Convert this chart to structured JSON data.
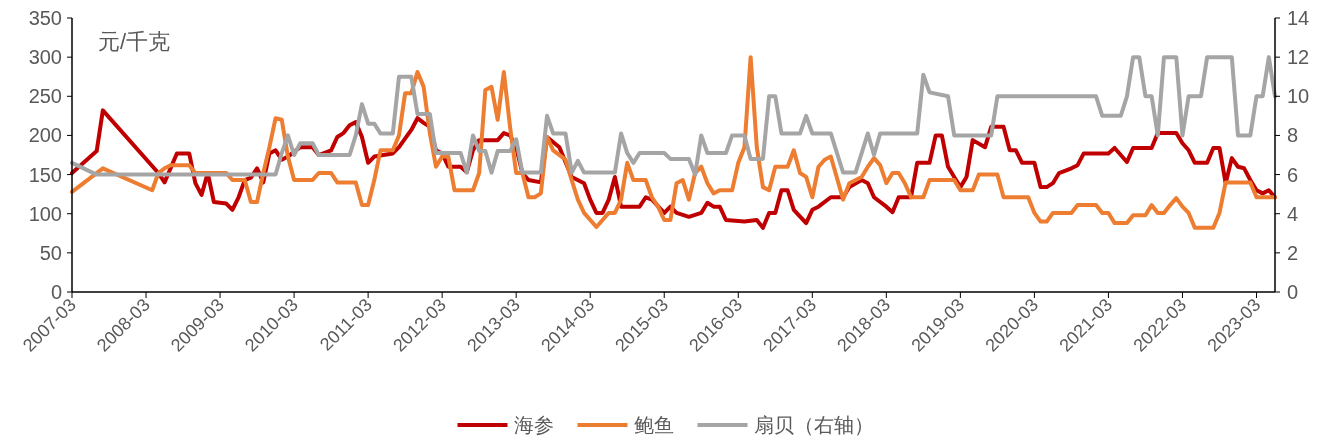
{
  "chart_data": {
    "type": "line",
    "ylabel": "元/千克",
    "xlim": [
      "2007-03",
      "2023-06"
    ],
    "xticks": [
      "2007-03",
      "2008-03",
      "2009-03",
      "2010-03",
      "2011-03",
      "2012-03",
      "2013-03",
      "2014-03",
      "2015-03",
      "2016-03",
      "2017-03",
      "2018-03",
      "2019-03",
      "2020-03",
      "2021-03",
      "2022-03",
      "2023-03"
    ],
    "ylim": [
      0,
      350
    ],
    "yticks": [
      0,
      50,
      100,
      150,
      200,
      250,
      300,
      350
    ],
    "y2lim": [
      0,
      14
    ],
    "y2ticks": [
      0,
      2,
      4,
      6,
      8,
      10,
      12,
      14
    ],
    "grid": false,
    "legend": "bottom",
    "line_style": "solid",
    "marker": "none",
    "series": [
      {
        "name": "海参",
        "color": "#c00000",
        "x": [
          "2007-03",
          "2007-07",
          "2007-08",
          "2008-05",
          "2008-06",
          "2008-08",
          "2008-10",
          "2008-11",
          "2008-12",
          "2009-01",
          "2009-02",
          "2009-04",
          "2009-05",
          "2009-06",
          "2009-07",
          "2009-08",
          "2009-09",
          "2009-10",
          "2009-11",
          "2009-12",
          "2010-01",
          "2010-02",
          "2010-04",
          "2010-06",
          "2010-07",
          "2010-09",
          "2010-10",
          "2010-11",
          "2010-12",
          "2011-01",
          "2011-02",
          "2011-03",
          "2011-04",
          "2011-07",
          "2011-08",
          "2011-10",
          "2011-11",
          "2011-12",
          "2012-01",
          "2012-02",
          "2012-03",
          "2012-04",
          "2012-06",
          "2012-07",
          "2012-08",
          "2012-09",
          "2012-12",
          "2013-01",
          "2013-02",
          "2013-03",
          "2013-04",
          "2013-05",
          "2013-07",
          "2013-08",
          "2013-10",
          "2013-12",
          "2014-02",
          "2014-03",
          "2014-04",
          "2014-05",
          "2014-06",
          "2014-07",
          "2014-08",
          "2014-11",
          "2014-12",
          "2015-01",
          "2015-03",
          "2015-04",
          "2015-05",
          "2015-07",
          "2015-09",
          "2015-10",
          "2015-11",
          "2015-12",
          "2016-01",
          "2016-04",
          "2016-06",
          "2016-07",
          "2016-08",
          "2016-09",
          "2016-10",
          "2016-11",
          "2016-12",
          "2017-02",
          "2017-03",
          "2017-04",
          "2017-06",
          "2017-08",
          "2017-09",
          "2017-11",
          "2017-12",
          "2018-01",
          "2018-03",
          "2018-04",
          "2018-05",
          "2018-07",
          "2018-08",
          "2018-10",
          "2018-11",
          "2018-12",
          "2019-01",
          "2019-02",
          "2019-03",
          "2019-04",
          "2019-05",
          "2019-07",
          "2019-08",
          "2019-10",
          "2019-11",
          "2019-12",
          "2020-01",
          "2020-03",
          "2020-04",
          "2020-05",
          "2020-06",
          "2020-07",
          "2020-09",
          "2020-10",
          "2020-11",
          "2021-03",
          "2021-04",
          "2021-06",
          "2021-07",
          "2021-10",
          "2021-11",
          "2022-02",
          "2022-03",
          "2022-04",
          "2022-05",
          "2022-07",
          "2022-08",
          "2022-09",
          "2022-10",
          "2022-11",
          "2022-12",
          "2023-01",
          "2023-02",
          "2023-03",
          "2023-04",
          "2023-05",
          "2023-06"
        ],
        "values": [
          152,
          180,
          232,
          152,
          140,
          177,
          177,
          139,
          124,
          152,
          115,
          113,
          105,
          121,
          143,
          146,
          158,
          140,
          177,
          181,
          169,
          173,
          185,
          185,
          175,
          181,
          198,
          203,
          213,
          217,
          198,
          165,
          173,
          177,
          185,
          207,
          222,
          216,
          211,
          181,
          177,
          160,
          160,
          153,
          181,
          194,
          194,
          203,
          200,
          185,
          152,
          143,
          140,
          198,
          185,
          147,
          139,
          118,
          101,
          101,
          118,
          147,
          109,
          109,
          121,
          118,
          101,
          109,
          101,
          96,
          101,
          114,
          109,
          109,
          92,
          90,
          92,
          82,
          101,
          101,
          130,
          130,
          105,
          88,
          105,
          109,
          121,
          121,
          134,
          143,
          139,
          121,
          109,
          102,
          121,
          121,
          165,
          165,
          200,
          200,
          160,
          147,
          134,
          147,
          194,
          185,
          211,
          211,
          181,
          181,
          165,
          165,
          134,
          134,
          139,
          152,
          158,
          162,
          177,
          177,
          184,
          166,
          184,
          184,
          203,
          203,
          190,
          181,
          165,
          165,
          184,
          184,
          139,
          171,
          160,
          158,
          143,
          130,
          126,
          130,
          121
        ]
      },
      {
        "name": "鲍鱼",
        "color": "#ed7d31",
        "x": [
          "2007-03",
          "2007-08",
          "2008-04",
          "2008-05",
          "2008-06",
          "2008-07",
          "2008-10",
          "2008-11",
          "2009-04",
          "2009-05",
          "2009-07",
          "2009-08",
          "2009-09",
          "2009-10",
          "2009-11",
          "2009-12",
          "2010-01",
          "2010-02",
          "2010-03",
          "2010-06",
          "2010-07",
          "2010-09",
          "2010-10",
          "2011-01",
          "2011-02",
          "2011-03",
          "2011-04",
          "2011-05",
          "2011-07",
          "2011-08",
          "2011-09",
          "2011-10",
          "2011-11",
          "2011-12",
          "2012-01",
          "2012-02",
          "2012-03",
          "2012-04",
          "2012-05",
          "2012-08",
          "2012-09",
          "2012-10",
          "2012-11",
          "2012-12",
          "2013-01",
          "2013-02",
          "2013-03",
          "2013-04",
          "2013-05",
          "2013-06",
          "2013-07",
          "2013-08",
          "2013-09",
          "2013-11",
          "2013-12",
          "2014-01",
          "2014-02",
          "2014-04",
          "2014-05",
          "2014-06",
          "2014-07",
          "2014-08",
          "2014-09",
          "2014-10",
          "2014-12",
          "2015-01",
          "2015-02",
          "2015-03",
          "2015-04",
          "2015-05",
          "2015-06",
          "2015-07",
          "2015-08",
          "2015-09",
          "2015-10",
          "2015-11",
          "2015-12",
          "2016-02",
          "2016-03",
          "2016-04",
          "2016-05",
          "2016-06",
          "2016-07",
          "2016-08",
          "2016-09",
          "2016-11",
          "2016-12",
          "2017-01",
          "2017-02",
          "2017-03",
          "2017-04",
          "2017-05",
          "2017-06",
          "2017-08",
          "2017-09",
          "2017-11",
          "2017-12",
          "2018-01",
          "2018-02",
          "2018-03",
          "2018-04",
          "2018-05",
          "2018-06",
          "2018-07",
          "2018-09",
          "2018-10",
          "2019-02",
          "2019-03",
          "2019-05",
          "2019-06",
          "2019-09",
          "2019-10",
          "2020-02",
          "2020-03",
          "2020-04",
          "2020-05",
          "2020-06",
          "2020-09",
          "2020-10",
          "2021-01",
          "2021-02",
          "2021-03",
          "2021-04",
          "2021-06",
          "2021-07",
          "2021-09",
          "2021-10",
          "2021-11",
          "2021-12",
          "2022-01",
          "2022-02",
          "2022-03",
          "2022-04",
          "2022-05",
          "2022-08",
          "2022-09",
          "2022-10",
          "2023-02",
          "2023-03",
          "2023-06"
        ],
        "values": [
          128,
          158,
          130,
          152,
          158,
          162,
          162,
          152,
          152,
          143,
          143,
          115,
          115,
          152,
          185,
          222,
          220,
          173,
          143,
          143,
          152,
          152,
          140,
          140,
          111,
          111,
          143,
          181,
          181,
          200,
          254,
          254,
          281,
          262,
          203,
          160,
          173,
          173,
          130,
          130,
          152,
          258,
          262,
          220,
          281,
          211,
          152,
          152,
          121,
          121,
          126,
          198,
          181,
          169,
          143,
          118,
          101,
          83,
          92,
          101,
          101,
          118,
          165,
          143,
          143,
          121,
          109,
          92,
          92,
          139,
          143,
          118,
          152,
          160,
          139,
          126,
          130,
          130,
          165,
          185,
          300,
          185,
          134,
          130,
          160,
          160,
          181,
          152,
          147,
          121,
          160,
          169,
          173,
          118,
          139,
          147,
          160,
          171,
          162,
          139,
          152,
          152,
          139,
          121,
          121,
          143,
          143,
          130,
          130,
          150,
          150,
          121,
          121,
          101,
          90,
          90,
          101,
          101,
          111,
          111,
          101,
          101,
          88,
          88,
          98,
          98,
          111,
          101,
          101,
          111,
          120,
          109,
          101,
          82,
          82,
          101,
          140,
          140,
          121,
          121
        ]
      },
      {
        "name": "扇贝（右轴）",
        "color": "#a5a5a5",
        "axis": "y2",
        "x": [
          "2007-03",
          "2007-07",
          "2009-12",
          "2010-01",
          "2010-02",
          "2010-03",
          "2010-04",
          "2010-06",
          "2010-07",
          "2010-12",
          "2011-01",
          "2011-02",
          "2011-03",
          "2011-04",
          "2011-05",
          "2011-07",
          "2011-08",
          "2011-10",
          "2011-11",
          "2012-01",
          "2012-02",
          "2012-06",
          "2012-07",
          "2012-08",
          "2012-09",
          "2012-10",
          "2012-11",
          "2012-12",
          "2013-02",
          "2013-03",
          "2013-04",
          "2013-07",
          "2013-08",
          "2013-09",
          "2013-11",
          "2013-12",
          "2014-01",
          "2014-02",
          "2014-07",
          "2014-08",
          "2014-09",
          "2014-10",
          "2014-11",
          "2015-03",
          "2015-04",
          "2015-07",
          "2015-08",
          "2015-09",
          "2015-10",
          "2016-01",
          "2016-02",
          "2016-04",
          "2016-05",
          "2016-07",
          "2016-08",
          "2016-09",
          "2016-10",
          "2017-01",
          "2017-02",
          "2017-03",
          "2017-06",
          "2017-07",
          "2017-08",
          "2017-10",
          "2017-11",
          "2017-12",
          "2018-01",
          "2018-02",
          "2018-08",
          "2018-09",
          "2018-10",
          "2019-01",
          "2019-02",
          "2019-08",
          "2019-09",
          "2021-01",
          "2021-02",
          "2021-05",
          "2021-06",
          "2021-07",
          "2021-08",
          "2021-09",
          "2021-10",
          "2021-11",
          "2021-12",
          "2022-02",
          "2022-03",
          "2022-04",
          "2022-06",
          "2022-07",
          "2022-11",
          "2022-12",
          "2023-02",
          "2023-03",
          "2023-04",
          "2023-05",
          "2023-06"
        ],
        "values": [
          6.6,
          6.0,
          6.0,
          7.1,
          8.0,
          7.0,
          7.6,
          7.6,
          7.0,
          7.0,
          8.0,
          9.6,
          8.6,
          8.6,
          8.1,
          8.1,
          11.0,
          11.0,
          9.1,
          9.1,
          7.1,
          7.1,
          6.1,
          8.0,
          7.2,
          7.2,
          6.1,
          7.2,
          7.2,
          7.8,
          6.1,
          6.1,
          9.0,
          8.1,
          8.1,
          6.1,
          6.7,
          6.1,
          6.1,
          8.1,
          7.1,
          6.6,
          7.1,
          7.1,
          6.8,
          6.8,
          6.0,
          8.0,
          7.1,
          7.1,
          8.0,
          8.0,
          6.8,
          6.8,
          10.0,
          10.0,
          8.1,
          8.1,
          9.0,
          8.1,
          8.1,
          7.1,
          6.1,
          6.1,
          7.1,
          8.1,
          7.0,
          8.1,
          8.1,
          11.1,
          10.2,
          10.0,
          8.0,
          8.0,
          10.0,
          10.0,
          9.0,
          9.0,
          10.0,
          12.0,
          12.0,
          10.0,
          10.0,
          8.0,
          12.0,
          12.0,
          8.0,
          10.0,
          10.0,
          12.0,
          12.0,
          8.0,
          8.0,
          10.0,
          10.0,
          12.0,
          10.0
        ]
      }
    ]
  }
}
